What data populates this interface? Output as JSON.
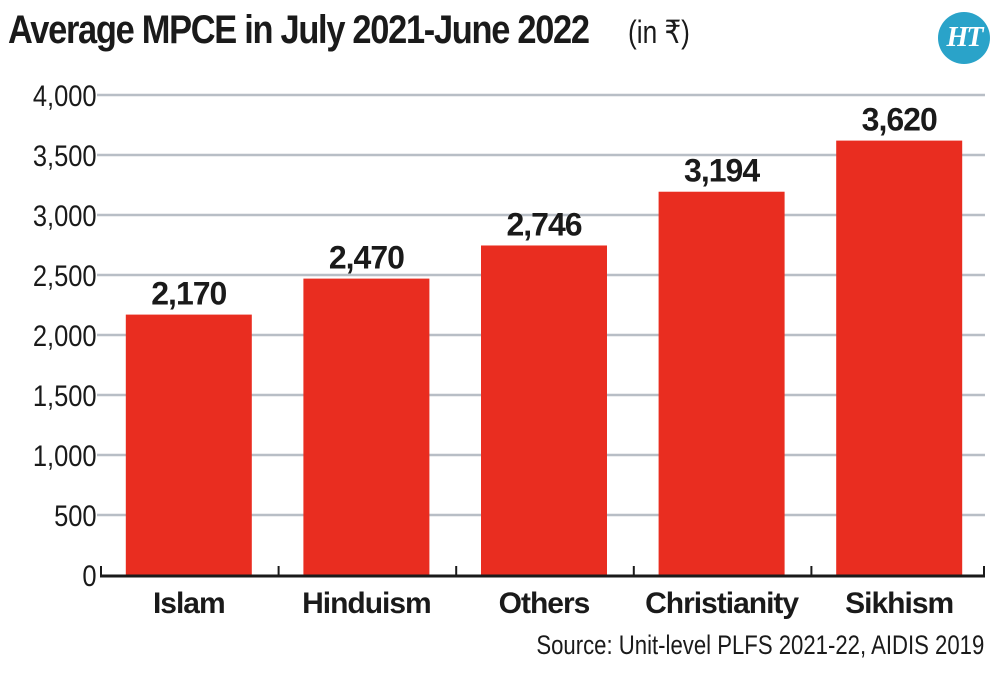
{
  "header": {
    "title": "Average MPCE in July 2021-June 2022",
    "unit": "(in ₹)",
    "logo_text": "HT",
    "logo_icon": "ht-logo-icon"
  },
  "source": "Source: Unit-level PLFS 2021-22, AIDIS 2019",
  "colors": {
    "bar": "#e92d20",
    "grid": "#b8bec6",
    "axis": "#1a1a1a",
    "text": "#1a1a1a",
    "logo": "#2aa3c9"
  },
  "chart_data": {
    "type": "bar",
    "title": "Average MPCE in July 2021-June 2022 (in ₹)",
    "xlabel": "",
    "ylabel": "",
    "categories": [
      "Islam",
      "Hinduism",
      "Others",
      "Christianity",
      "Sikhism"
    ],
    "values": [
      2170,
      2470,
      2746,
      3194,
      3620
    ],
    "data_labels": [
      "2,170",
      "2,470",
      "2,746",
      "3,194",
      "3,620"
    ],
    "ylim": [
      0,
      4000
    ],
    "yticks": [
      0,
      500,
      1000,
      1500,
      2000,
      2500,
      3000,
      3500,
      4000
    ],
    "ytick_labels": [
      "0",
      "500",
      "1,000",
      "1,500",
      "2,000",
      "2,500",
      "3,000",
      "3,500",
      "4,000"
    ],
    "grid": true,
    "legend": "none"
  }
}
